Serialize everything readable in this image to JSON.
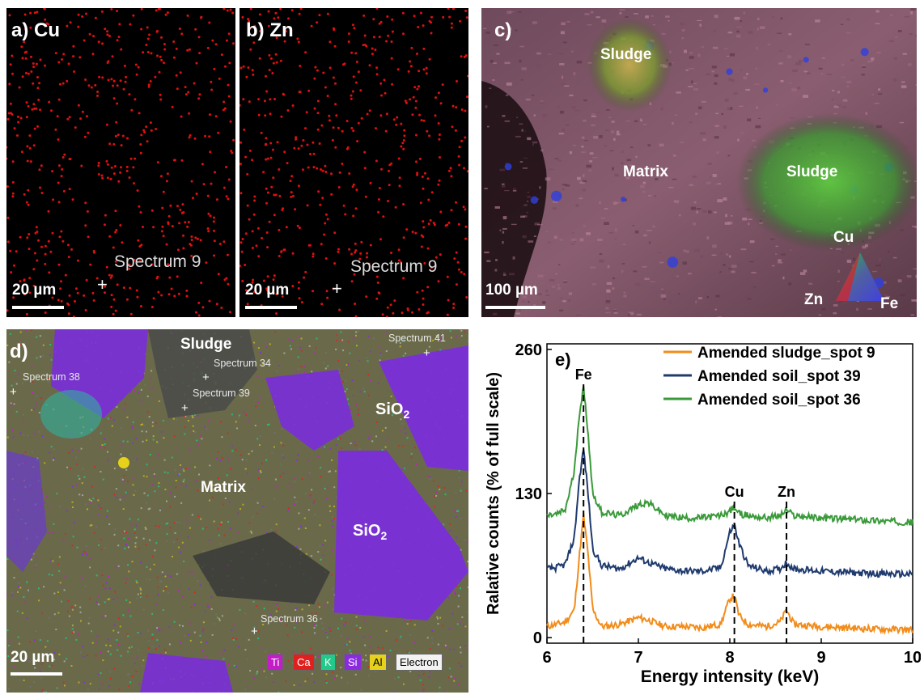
{
  "panels": {
    "a": {
      "label": "a) Cu",
      "spectrum": "Spectrum 9",
      "scale": "20 µm"
    },
    "b": {
      "label": "b) Zn",
      "spectrum": "Spectrum 9",
      "scale": "20 µm"
    },
    "c": {
      "label": "c)",
      "sludge1": "Sludge",
      "sludge2": "Sludge",
      "matrix": "Matrix",
      "scale": "100 µm",
      "triangle": {
        "top": "Cu",
        "left": "Zn",
        "right": "Fe"
      }
    },
    "d": {
      "label": "d)",
      "sludge": "Sludge",
      "matrix": "Matrix",
      "sio2_a": "SiO",
      "sio2_b": "SiO",
      "sub": "2",
      "spectra": [
        "Spectrum 41",
        "Spectrum 34",
        "Spectrum 38",
        "Spectrum 39",
        "Spectrum 36"
      ],
      "scale": "20 µm",
      "legend": [
        "Ti",
        "Ca",
        "K",
        "Si",
        "Al",
        "Electron"
      ],
      "legend_colors": [
        "#c21dc7",
        "#e0201f",
        "#22c98a",
        "#8b2be0",
        "#e6d21a",
        "#f2f2f2"
      ]
    }
  },
  "chart_data": {
    "type": "line",
    "panel_label": "e)",
    "xlabel": "Energy intensity (keV)",
    "ylabel": "Ralative counts (% of full scale)",
    "xlim": [
      6,
      10
    ],
    "ylim": [
      -5,
      265
    ],
    "xticks": [
      "6",
      "7",
      "8",
      "9",
      "10"
    ],
    "yticks": [
      "0",
      "130",
      "260"
    ],
    "peaks": [
      {
        "label": "Fe",
        "x": 6.4
      },
      {
        "label": "Cu",
        "x": 8.05
      },
      {
        "label": "Zn",
        "x": 8.62
      }
    ],
    "series": [
      {
        "name": "Amended sludge_spot 9",
        "color": "#f28c1a",
        "offset": 10,
        "points": [
          [
            6.0,
            10
          ],
          [
            6.1,
            12
          ],
          [
            6.2,
            14
          ],
          [
            6.3,
            25
          ],
          [
            6.35,
            70
          ],
          [
            6.4,
            110
          ],
          [
            6.45,
            75
          ],
          [
            6.5,
            25
          ],
          [
            6.6,
            10
          ],
          [
            6.8,
            12
          ],
          [
            7.0,
            18
          ],
          [
            7.1,
            16
          ],
          [
            7.3,
            10
          ],
          [
            7.5,
            10
          ],
          [
            7.7,
            9
          ],
          [
            7.9,
            12
          ],
          [
            8.0,
            35
          ],
          [
            8.05,
            38
          ],
          [
            8.1,
            20
          ],
          [
            8.2,
            12
          ],
          [
            8.4,
            10
          ],
          [
            8.55,
            14
          ],
          [
            8.62,
            25
          ],
          [
            8.7,
            12
          ],
          [
            9.0,
            10
          ],
          [
            9.5,
            8
          ],
          [
            10.0,
            7
          ]
        ]
      },
      {
        "name": "Amended soil_spot 39",
        "color": "#1f3a6e",
        "offset": 60,
        "points": [
          [
            6.0,
            62
          ],
          [
            6.1,
            63
          ],
          [
            6.2,
            66
          ],
          [
            6.3,
            90
          ],
          [
            6.35,
            140
          ],
          [
            6.4,
            170
          ],
          [
            6.45,
            130
          ],
          [
            6.5,
            80
          ],
          [
            6.6,
            65
          ],
          [
            6.8,
            62
          ],
          [
            7.0,
            72
          ],
          [
            7.1,
            68
          ],
          [
            7.3,
            62
          ],
          [
            7.5,
            60
          ],
          [
            7.7,
            60
          ],
          [
            7.9,
            63
          ],
          [
            8.0,
            95
          ],
          [
            8.05,
            102
          ],
          [
            8.1,
            85
          ],
          [
            8.2,
            65
          ],
          [
            8.4,
            60
          ],
          [
            8.55,
            62
          ],
          [
            8.62,
            68
          ],
          [
            8.7,
            62
          ],
          [
            9.0,
            60
          ],
          [
            9.5,
            58
          ],
          [
            10.0,
            57
          ]
        ]
      },
      {
        "name": "Amended soil_spot 36",
        "color": "#3a9a3a",
        "offset": 110,
        "points": [
          [
            6.0,
            110
          ],
          [
            6.1,
            111
          ],
          [
            6.2,
            115
          ],
          [
            6.3,
            150
          ],
          [
            6.35,
            200
          ],
          [
            6.4,
            225
          ],
          [
            6.45,
            185
          ],
          [
            6.5,
            130
          ],
          [
            6.6,
            113
          ],
          [
            6.8,
            110
          ],
          [
            7.0,
            120
          ],
          [
            7.1,
            122
          ],
          [
            7.3,
            110
          ],
          [
            7.5,
            108
          ],
          [
            7.7,
            108
          ],
          [
            7.9,
            110
          ],
          [
            8.0,
            114
          ],
          [
            8.05,
            118
          ],
          [
            8.1,
            112
          ],
          [
            8.2,
            110
          ],
          [
            8.4,
            108
          ],
          [
            8.55,
            110
          ],
          [
            8.62,
            115
          ],
          [
            8.7,
            110
          ],
          [
            9.0,
            108
          ],
          [
            9.5,
            106
          ],
          [
            10.0,
            104
          ]
        ]
      }
    ],
    "legend_position": "top-right"
  }
}
